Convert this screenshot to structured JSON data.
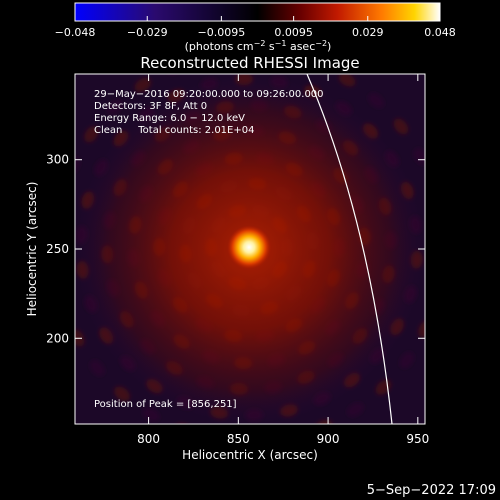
{
  "chart_data": {
    "type": "heatmap",
    "title": "Reconstructed RHESSI Image",
    "xlabel": "Heliocentric X (arcsec)",
    "ylabel": "Heliocentric Y (arcsec)",
    "xlim": [
      759,
      954
    ],
    "ylim": [
      152,
      348
    ],
    "x_ticks": [
      800,
      850,
      900,
      950
    ],
    "y_ticks": [
      200,
      250,
      300
    ],
    "colorbar": {
      "colormap": "hot",
      "range": [
        -0.048,
        0.048
      ],
      "tick_values": [
        -0.048,
        -0.029,
        -0.0095,
        0.0095,
        0.029,
        0.048
      ],
      "tick_labels": [
        "−0.048",
        "−0.029",
        "−0.0095",
        "0.0095",
        "0.029",
        "0.048"
      ],
      "units_main": "(photons cm",
      "units_sup1": "−2",
      "units_mid": " s",
      "units_sup2": "−1",
      "units_mid2": " asec",
      "units_sup3": "−2",
      "units_end": ")"
    },
    "peak": {
      "x": 856,
      "y": 251
    },
    "info_lines": [
      "29−May−2016 09:20:00.000 to 09:26:00.000",
      "Detectors: 3F 8F, Att 0",
      "Energy Range: 6.0 − 12.0 keV",
      "Clean     Total counts: 2.01E+04"
    ],
    "peak_label": "Position of Peak = [856,251]"
  },
  "footer": {
    "date": "5−Sep−2022 17:09"
  }
}
